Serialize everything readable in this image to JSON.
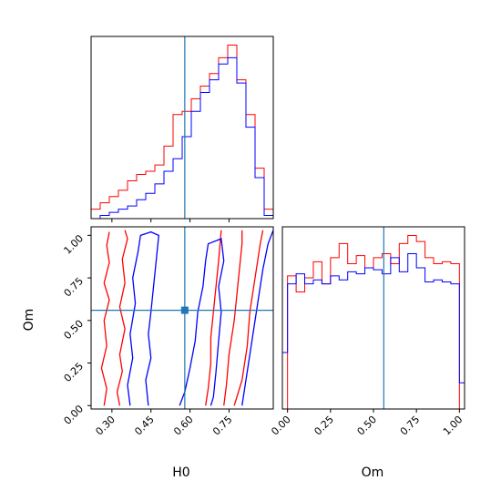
{
  "chart_data": [
    {
      "type": "histogram",
      "panel": "H0 marginal",
      "xlim": [
        0.22,
        0.92
      ],
      "reference_value": 0.58,
      "bin_edges": [
        0.22,
        0.255,
        0.29,
        0.325,
        0.36,
        0.395,
        0.43,
        0.465,
        0.5,
        0.535,
        0.57,
        0.605,
        0.64,
        0.675,
        0.71,
        0.745,
        0.78,
        0.815,
        0.85,
        0.885,
        0.92
      ],
      "series": [
        {
          "color": "#ff0000",
          "values": [
            3,
            5,
            7,
            9,
            12,
            14,
            15,
            17,
            23,
            33,
            34,
            38,
            42,
            46,
            51,
            55,
            44,
            33,
            16,
            3
          ]
        },
        {
          "color": "#0000ff",
          "values": [
            0,
            1,
            2,
            3,
            4,
            6,
            8,
            11,
            15,
            19,
            26,
            34,
            40,
            44,
            49,
            51,
            43,
            29,
            13,
            1
          ]
        }
      ]
    },
    {
      "type": "contour",
      "panel": "H0 vs Om joint",
      "xlabel": "H0",
      "ylabel": "Om",
      "xlim": [
        0.22,
        0.92
      ],
      "ylim": [
        -0.02,
        1.05
      ],
      "x_ticks": [
        "0.30",
        "0.45",
        "0.60",
        "0.75"
      ],
      "x_tick_values": [
        0.3,
        0.45,
        0.6,
        0.75
      ],
      "y_ticks": [
        "0.00",
        "0.25",
        "0.50",
        "0.75",
        "1.00"
      ],
      "y_tick_values": [
        0.0,
        0.25,
        0.5,
        0.75,
        1.0
      ],
      "reference_point": [
        0.58,
        0.56
      ],
      "series": [
        {
          "color": "#ff0000",
          "contours": [
            [
              [
                0.27,
                0.0
              ],
              [
                0.28,
                0.1
              ],
              [
                0.26,
                0.22
              ],
              [
                0.28,
                0.35
              ],
              [
                0.27,
                0.5
              ],
              [
                0.29,
                0.62
              ],
              [
                0.27,
                0.72
              ],
              [
                0.29,
                0.84
              ],
              [
                0.28,
                0.94
              ],
              [
                0.29,
                1.02
              ]
            ],
            [
              [
                0.33,
                0.0
              ],
              [
                0.32,
                0.08
              ],
              [
                0.34,
                0.2
              ],
              [
                0.33,
                0.3
              ],
              [
                0.35,
                0.45
              ],
              [
                0.33,
                0.58
              ],
              [
                0.35,
                0.72
              ],
              [
                0.34,
                0.86
              ],
              [
                0.36,
                0.98
              ],
              [
                0.35,
                1.03
              ]
            ],
            [
              [
                0.66,
                0.0
              ],
              [
                0.67,
                0.1
              ],
              [
                0.68,
                0.25
              ],
              [
                0.68,
                0.4
              ],
              [
                0.69,
                0.55
              ],
              [
                0.7,
                0.7
              ],
              [
                0.71,
                0.85
              ],
              [
                0.72,
                1.03
              ]
            ],
            [
              [
                0.73,
                0.0
              ],
              [
                0.74,
                0.12
              ],
              [
                0.75,
                0.3
              ],
              [
                0.77,
                0.5
              ],
              [
                0.78,
                0.65
              ],
              [
                0.79,
                0.8
              ],
              [
                0.8,
                0.95
              ],
              [
                0.8,
                1.03
              ]
            ],
            [
              [
                0.77,
                0.0
              ],
              [
                0.8,
                0.15
              ],
              [
                0.82,
                0.35
              ],
              [
                0.83,
                0.55
              ],
              [
                0.85,
                0.75
              ],
              [
                0.87,
                0.95
              ],
              [
                0.88,
                1.03
              ]
            ]
          ]
        },
        {
          "color": "#0000ff",
          "contours": [
            [
              [
                0.37,
                0.0
              ],
              [
                0.36,
                0.12
              ],
              [
                0.38,
                0.28
              ],
              [
                0.37,
                0.42
              ],
              [
                0.39,
                0.6
              ],
              [
                0.38,
                0.75
              ],
              [
                0.4,
                0.9
              ],
              [
                0.41,
                1.0
              ],
              [
                0.45,
                1.02
              ],
              [
                0.48,
                1.0
              ],
              [
                0.47,
                0.85
              ],
              [
                0.46,
                0.7
              ],
              [
                0.45,
                0.55
              ],
              [
                0.44,
                0.42
              ],
              [
                0.45,
                0.28
              ],
              [
                0.43,
                0.15
              ],
              [
                0.44,
                0.0
              ]
            ],
            [
              [
                0.56,
                0.0
              ],
              [
                0.58,
                0.08
              ],
              [
                0.6,
                0.22
              ],
              [
                0.62,
                0.38
              ],
              [
                0.63,
                0.55
              ],
              [
                0.65,
                0.7
              ],
              [
                0.66,
                0.85
              ],
              [
                0.67,
                0.95
              ],
              [
                0.72,
                0.98
              ],
              [
                0.73,
                0.85
              ],
              [
                0.71,
                0.7
              ],
              [
                0.72,
                0.55
              ],
              [
                0.71,
                0.38
              ],
              [
                0.7,
                0.2
              ],
              [
                0.69,
                0.05
              ],
              [
                0.68,
                0.0
              ]
            ],
            [
              [
                0.8,
                0.0
              ],
              [
                0.82,
                0.2
              ],
              [
                0.84,
                0.4
              ],
              [
                0.86,
                0.6
              ],
              [
                0.88,
                0.8
              ],
              [
                0.9,
                0.95
              ],
              [
                0.92,
                1.03
              ]
            ]
          ]
        }
      ]
    },
    {
      "type": "histogram",
      "panel": "Om marginal",
      "xlabel": "Om",
      "xlim": [
        -0.03,
        1.03
      ],
      "x_ticks": [
        "0.00",
        "0.25",
        "0.50",
        "0.75",
        "1.00"
      ],
      "x_tick_values": [
        0.0,
        0.25,
        0.5,
        0.75,
        1.0
      ],
      "reference_value": 0.56,
      "bin_edges": [
        -0.03,
        0.0,
        0.05,
        0.1,
        0.15,
        0.2,
        0.25,
        0.3,
        0.35,
        0.4,
        0.45,
        0.5,
        0.55,
        0.6,
        0.65,
        0.7,
        0.75,
        0.8,
        0.85,
        0.9,
        0.95,
        1.0,
        1.03
      ],
      "series": [
        {
          "color": "#ff0000",
          "values": [
            0,
            66,
            58,
            65,
            73,
            62,
            75,
            82,
            72,
            76,
            70,
            75,
            77,
            72,
            82,
            86,
            83,
            75,
            72,
            73,
            72,
            0
          ]
        },
        {
          "color": "#0000ff",
          "values": [
            28,
            62,
            67,
            62,
            64,
            62,
            66,
            64,
            68,
            67,
            70,
            69,
            67,
            75,
            68,
            77,
            70,
            63,
            64,
            63,
            62,
            13
          ]
        }
      ]
    }
  ]
}
